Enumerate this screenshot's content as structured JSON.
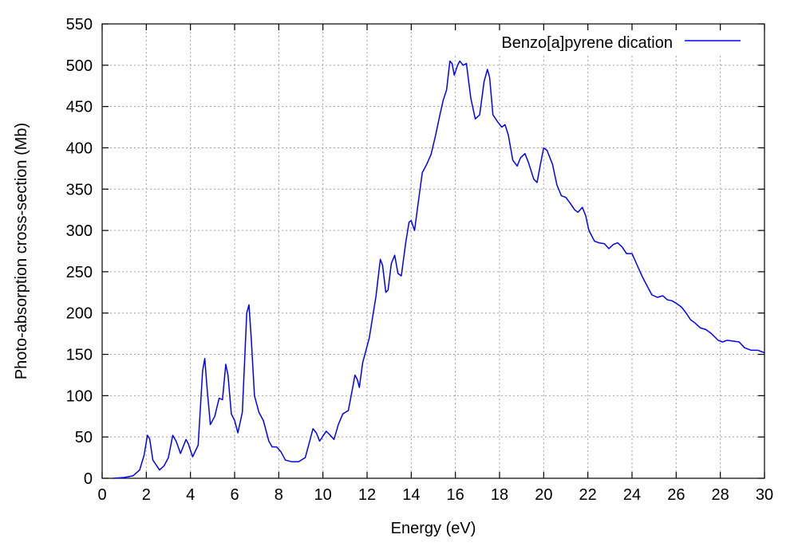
{
  "chart_data": {
    "type": "line",
    "title": "",
    "xlabel": "Energy (eV)",
    "ylabel": "Photo-absorption cross-section (Mb)",
    "xlim": [
      0,
      30
    ],
    "ylim": [
      0,
      550
    ],
    "xticks": [
      0,
      2,
      4,
      6,
      8,
      10,
      12,
      14,
      16,
      18,
      20,
      22,
      24,
      26,
      28,
      30
    ],
    "yticks": [
      0,
      50,
      100,
      150,
      200,
      250,
      300,
      350,
      400,
      450,
      500,
      550
    ],
    "grid": true,
    "legend_position": "top-right",
    "series": [
      {
        "name": "Benzo[a]pyrene dication",
        "color": "#0000ff",
        "points": [
          [
            0.5,
            0
          ],
          [
            1.0,
            1
          ],
          [
            1.4,
            3
          ],
          [
            1.7,
            10
          ],
          [
            1.9,
            28
          ],
          [
            2.05,
            52
          ],
          [
            2.15,
            48
          ],
          [
            2.3,
            22
          ],
          [
            2.6,
            10
          ],
          [
            2.8,
            15
          ],
          [
            3.0,
            25
          ],
          [
            3.2,
            52
          ],
          [
            3.35,
            45
          ],
          [
            3.55,
            30
          ],
          [
            3.8,
            47
          ],
          [
            3.9,
            42
          ],
          [
            4.1,
            26
          ],
          [
            4.35,
            40
          ],
          [
            4.55,
            130
          ],
          [
            4.65,
            145
          ],
          [
            4.75,
            110
          ],
          [
            4.9,
            65
          ],
          [
            5.1,
            75
          ],
          [
            5.3,
            97
          ],
          [
            5.45,
            95
          ],
          [
            5.6,
            138
          ],
          [
            5.7,
            125
          ],
          [
            5.85,
            78
          ],
          [
            6.0,
            70
          ],
          [
            6.15,
            55
          ],
          [
            6.35,
            80
          ],
          [
            6.55,
            200
          ],
          [
            6.65,
            210
          ],
          [
            6.75,
            170
          ],
          [
            6.9,
            100
          ],
          [
            7.1,
            80
          ],
          [
            7.3,
            70
          ],
          [
            7.55,
            45
          ],
          [
            7.7,
            38
          ],
          [
            7.9,
            38
          ],
          [
            8.1,
            32
          ],
          [
            8.3,
            22
          ],
          [
            8.6,
            20
          ],
          [
            8.9,
            20
          ],
          [
            9.2,
            25
          ],
          [
            9.4,
            45
          ],
          [
            9.55,
            60
          ],
          [
            9.7,
            55
          ],
          [
            9.85,
            45
          ],
          [
            10.15,
            57
          ],
          [
            10.3,
            53
          ],
          [
            10.5,
            47
          ],
          [
            10.7,
            65
          ],
          [
            10.9,
            78
          ],
          [
            11.15,
            82
          ],
          [
            11.35,
            110
          ],
          [
            11.45,
            125
          ],
          [
            11.55,
            120
          ],
          [
            11.65,
            110
          ],
          [
            11.8,
            140
          ],
          [
            12.1,
            170
          ],
          [
            12.4,
            220
          ],
          [
            12.6,
            265
          ],
          [
            12.7,
            258
          ],
          [
            12.85,
            225
          ],
          [
            12.95,
            228
          ],
          [
            13.1,
            260
          ],
          [
            13.25,
            270
          ],
          [
            13.4,
            248
          ],
          [
            13.55,
            245
          ],
          [
            13.75,
            285
          ],
          [
            13.9,
            310
          ],
          [
            14.0,
            312
          ],
          [
            14.15,
            300
          ],
          [
            14.3,
            330
          ],
          [
            14.5,
            370
          ],
          [
            14.7,
            380
          ],
          [
            14.9,
            392
          ],
          [
            15.1,
            415
          ],
          [
            15.3,
            440
          ],
          [
            15.45,
            458
          ],
          [
            15.6,
            470
          ],
          [
            15.75,
            505
          ],
          [
            15.85,
            502
          ],
          [
            15.95,
            488
          ],
          [
            16.1,
            500
          ],
          [
            16.2,
            505
          ],
          [
            16.35,
            500
          ],
          [
            16.5,
            502
          ],
          [
            16.7,
            460
          ],
          [
            16.9,
            435
          ],
          [
            17.1,
            440
          ],
          [
            17.3,
            480
          ],
          [
            17.45,
            495
          ],
          [
            17.55,
            485
          ],
          [
            17.7,
            440
          ],
          [
            17.9,
            432
          ],
          [
            18.1,
            425
          ],
          [
            18.25,
            428
          ],
          [
            18.4,
            415
          ],
          [
            18.6,
            385
          ],
          [
            18.8,
            378
          ],
          [
            18.95,
            388
          ],
          [
            19.15,
            393
          ],
          [
            19.3,
            383
          ],
          [
            19.55,
            362
          ],
          [
            19.7,
            358
          ],
          [
            19.85,
            380
          ],
          [
            20.0,
            400
          ],
          [
            20.15,
            397
          ],
          [
            20.4,
            380
          ],
          [
            20.6,
            355
          ],
          [
            20.8,
            342
          ],
          [
            21.0,
            340
          ],
          [
            21.2,
            333
          ],
          [
            21.4,
            325
          ],
          [
            21.55,
            322
          ],
          [
            21.75,
            328
          ],
          [
            21.9,
            318
          ],
          [
            22.05,
            300
          ],
          [
            22.3,
            287
          ],
          [
            22.5,
            285
          ],
          [
            22.75,
            284
          ],
          [
            22.95,
            278
          ],
          [
            23.15,
            283
          ],
          [
            23.35,
            285
          ],
          [
            23.55,
            280
          ],
          [
            23.75,
            272
          ],
          [
            24.0,
            272
          ],
          [
            24.2,
            260
          ],
          [
            24.45,
            245
          ],
          [
            24.7,
            232
          ],
          [
            24.9,
            222
          ],
          [
            25.15,
            219
          ],
          [
            25.4,
            221
          ],
          [
            25.6,
            216
          ],
          [
            25.8,
            215
          ],
          [
            26.0,
            212
          ],
          [
            26.25,
            207
          ],
          [
            26.45,
            200
          ],
          [
            26.65,
            192
          ],
          [
            26.85,
            188
          ],
          [
            27.1,
            182
          ],
          [
            27.35,
            180
          ],
          [
            27.6,
            175
          ],
          [
            27.9,
            167
          ],
          [
            28.1,
            165
          ],
          [
            28.3,
            167
          ],
          [
            28.6,
            166
          ],
          [
            28.85,
            165
          ],
          [
            29.1,
            158
          ],
          [
            29.4,
            155
          ],
          [
            29.7,
            155
          ],
          [
            30.0,
            152
          ]
        ]
      }
    ]
  }
}
